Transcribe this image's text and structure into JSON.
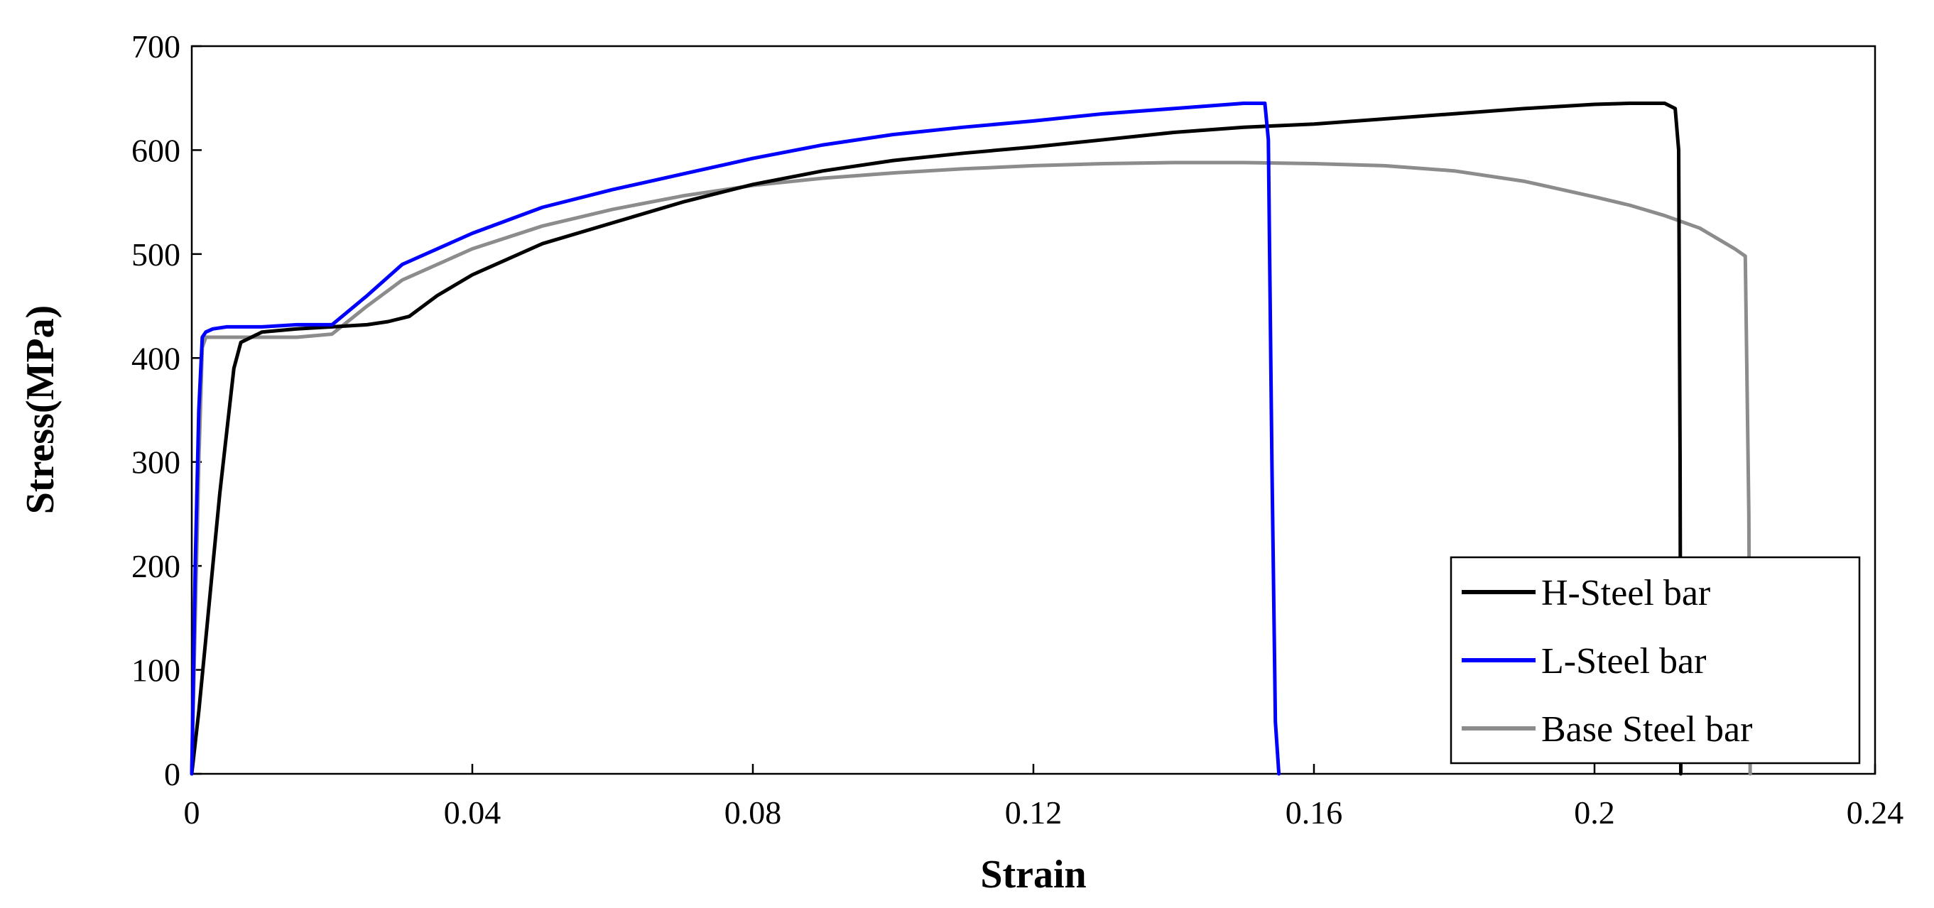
{
  "chart_data": {
    "type": "line",
    "title": "",
    "xlabel": "Strain",
    "ylabel": "Stress(MPa)",
    "xlim": [
      0,
      0.24
    ],
    "ylim": [
      0,
      700
    ],
    "x_ticks": [
      0,
      0.04,
      0.08,
      0.12,
      0.16,
      0.2,
      0.24
    ],
    "x_tick_labels": [
      "0",
      "0.04",
      "0.08",
      "0.12",
      "0.16",
      "0.2",
      "0.24"
    ],
    "y_ticks": [
      0,
      100,
      200,
      300,
      400,
      500,
      600,
      700
    ],
    "y_tick_labels": [
      "0",
      "100",
      "200",
      "300",
      "400",
      "500",
      "600",
      "700"
    ],
    "grid": false,
    "legend_position": "bottom-right",
    "series": [
      {
        "name": "H-Steel bar",
        "color": "#000000",
        "x": [
          0,
          0.001,
          0.002,
          0.003,
          0.004,
          0.005,
          0.006,
          0.007,
          0.01,
          0.015,
          0.02,
          0.025,
          0.028,
          0.031,
          0.035,
          0.04,
          0.05,
          0.06,
          0.07,
          0.08,
          0.09,
          0.1,
          0.11,
          0.12,
          0.13,
          0.14,
          0.15,
          0.16,
          0.17,
          0.18,
          0.19,
          0.2,
          0.205,
          0.21,
          0.2115,
          0.212,
          0.2122,
          0.2123
        ],
        "y": [
          0,
          60,
          130,
          200,
          270,
          330,
          390,
          415,
          425,
          428,
          430,
          432,
          435,
          440,
          460,
          480,
          510,
          530,
          550,
          567,
          580,
          590,
          597,
          603,
          610,
          617,
          622,
          625,
          630,
          635,
          640,
          644,
          645,
          645,
          640,
          600,
          300,
          0
        ]
      },
      {
        "name": "L-Steel bar",
        "color": "#0000ff",
        "x": [
          0,
          0.0005,
          0.001,
          0.0015,
          0.002,
          0.003,
          0.005,
          0.01,
          0.015,
          0.02,
          0.025,
          0.03,
          0.04,
          0.05,
          0.06,
          0.07,
          0.08,
          0.09,
          0.1,
          0.11,
          0.12,
          0.13,
          0.14,
          0.15,
          0.153,
          0.1535,
          0.154,
          0.1545,
          0.155
        ],
        "y": [
          0,
          200,
          350,
          420,
          425,
          428,
          430,
          430,
          432,
          432,
          460,
          490,
          520,
          545,
          562,
          577,
          592,
          605,
          615,
          622,
          628,
          635,
          640,
          645,
          645,
          610,
          300,
          50,
          0
        ]
      },
      {
        "name": "Base Steel bar",
        "color": "#8c8c8c",
        "x": [
          0,
          0.0005,
          0.001,
          0.0015,
          0.002,
          0.005,
          0.01,
          0.015,
          0.02,
          0.025,
          0.03,
          0.04,
          0.05,
          0.06,
          0.07,
          0.08,
          0.09,
          0.1,
          0.11,
          0.12,
          0.13,
          0.14,
          0.15,
          0.16,
          0.17,
          0.18,
          0.19,
          0.2,
          0.205,
          0.21,
          0.215,
          0.22,
          0.2215,
          0.222,
          0.2222
        ],
        "y": [
          0,
          150,
          300,
          410,
          420,
          420,
          420,
          420,
          423,
          450,
          475,
          505,
          527,
          543,
          556,
          566,
          573,
          578,
          582,
          585,
          587,
          588,
          588,
          587,
          585,
          580,
          570,
          555,
          547,
          537,
          525,
          505,
          498,
          250,
          0
        ]
      }
    ]
  }
}
